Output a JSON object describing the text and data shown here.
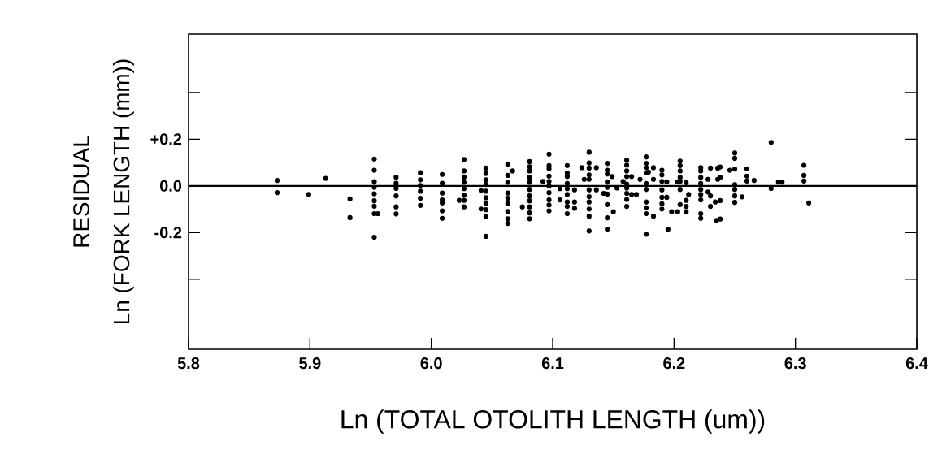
{
  "chart_data": {
    "type": "scatter",
    "xlabel": "Ln (TOTAL OTOLITH LENGTH (um))",
    "ylabel": "Ln (FORK LENGTH (mm))",
    "annotations": [
      "RESIDUAL"
    ],
    "xlim": [
      5.8,
      6.4
    ],
    "xticks": [
      {
        "value": 5.8,
        "label": "5.8"
      },
      {
        "value": 5.9,
        "label": "5.9"
      },
      {
        "value": 6.0,
        "label": "6.0"
      },
      {
        "value": 6.1,
        "label": "6.1"
      },
      {
        "value": 6.2,
        "label": "6.2"
      },
      {
        "value": 6.3,
        "label": "6.3"
      },
      {
        "value": 6.4,
        "label": "6.4"
      }
    ],
    "ylim": [
      -0.7,
      0.65
    ],
    "yticks": [
      {
        "value": -0.4,
        "label": null
      },
      {
        "value": -0.2,
        "label": "-0.2"
      },
      {
        "value": 0.0,
        "label": "0.0"
      },
      {
        "value": 0.2,
        "label": "+0.2"
      },
      {
        "value": 0.4,
        "label": null
      }
    ],
    "ref_lines": [
      {
        "axis": "y",
        "value": 0.0,
        "color": "#000000"
      }
    ],
    "series": [
      {
        "color": "#000000",
        "x": [
          5.873,
          5.873,
          5.899,
          5.913,
          5.933,
          5.933,
          5.953,
          5.953,
          5.953,
          5.953,
          5.953,
          5.953,
          5.953,
          5.953,
          5.956,
          5.953,
          5.971,
          5.971,
          5.971,
          5.971,
          5.971,
          5.971,
          5.971,
          5.991,
          5.991,
          5.991,
          5.991,
          5.991,
          5.991,
          6.009,
          6.009,
          6.009,
          6.009,
          6.009,
          6.009,
          6.009,
          6.023,
          6.027,
          6.027,
          6.027,
          6.027,
          6.027,
          6.027,
          6.027,
          6.027,
          6.045,
          6.045,
          6.045,
          6.045,
          6.045,
          6.045,
          6.045,
          6.045,
          6.045,
          6.045,
          6.041,
          6.041,
          6.063,
          6.063,
          6.063,
          6.063,
          6.063,
          6.063,
          6.063,
          6.063,
          6.063,
          6.067,
          6.075,
          6.081,
          6.081,
          6.081,
          6.081,
          6.081,
          6.081,
          6.081,
          6.081,
          6.081,
          6.081,
          6.081,
          6.097,
          6.097,
          6.097,
          6.097,
          6.097,
          6.097,
          6.097,
          6.097,
          6.097,
          6.097,
          6.092,
          6.106,
          6.106,
          6.112,
          6.112,
          6.112,
          6.112,
          6.112,
          6.112,
          6.112,
          6.112,
          6.112,
          6.118,
          6.118,
          6.118,
          6.13,
          6.13,
          6.13,
          6.13,
          6.13,
          6.13,
          6.13,
          6.13,
          6.13,
          6.13,
          6.13,
          6.124,
          6.126,
          6.136,
          6.136,
          6.145,
          6.145,
          6.145,
          6.145,
          6.145,
          6.145,
          6.145,
          6.145,
          6.145,
          6.149,
          6.15,
          6.142,
          6.161,
          6.161,
          6.161,
          6.161,
          6.161,
          6.161,
          6.161,
          6.161,
          6.161,
          6.158,
          6.165,
          6.165,
          6.169,
          6.153,
          6.177,
          6.177,
          6.177,
          6.177,
          6.177,
          6.177,
          6.177,
          6.177,
          6.177,
          6.177,
          6.179,
          6.183,
          6.183,
          6.183,
          6.172,
          6.19,
          6.19,
          6.19,
          6.19,
          6.19,
          6.19,
          6.19,
          6.194,
          6.194,
          6.195,
          6.198,
          6.203,
          6.203,
          6.205,
          6.205,
          6.205,
          6.205,
          6.205,
          6.205,
          6.205,
          6.21,
          6.21,
          6.21,
          6.21,
          6.212,
          6.222,
          6.222,
          6.222,
          6.222,
          6.222,
          6.222,
          6.222,
          6.222,
          6.222,
          6.228,
          6.228,
          6.23,
          6.23,
          6.23,
          6.234,
          6.236,
          6.236,
          6.235,
          6.246,
          6.238,
          6.238,
          6.238,
          6.238,
          6.25,
          6.25,
          6.25,
          6.25,
          6.25,
          6.25,
          6.25,
          6.256,
          6.26,
          6.26,
          6.26,
          6.266,
          6.28,
          6.28,
          6.286,
          6.289,
          6.307,
          6.307,
          6.307,
          6.311
        ],
        "values": [
          0.023,
          -0.029,
          -0.037,
          0.032,
          -0.056,
          -0.136,
          0.115,
          0.067,
          0.018,
          -0.006,
          -0.034,
          -0.064,
          -0.087,
          -0.119,
          -0.119,
          -0.22,
          0.037,
          0.011,
          0.0,
          -0.011,
          -0.043,
          -0.09,
          -0.12,
          0.056,
          0.026,
          0.002,
          -0.023,
          -0.053,
          -0.084,
          0.049,
          0.011,
          -0.031,
          -0.06,
          -0.073,
          -0.107,
          -0.139,
          -0.062,
          0.113,
          0.064,
          0.038,
          0.015,
          -0.012,
          -0.04,
          -0.062,
          -0.09,
          0.076,
          0.053,
          0.026,
          0.006,
          -0.023,
          -0.051,
          -0.076,
          -0.102,
          -0.132,
          -0.216,
          -0.02,
          -0.099,
          0.093,
          0.045,
          0.015,
          -0.031,
          -0.053,
          -0.076,
          -0.11,
          -0.141,
          -0.161,
          0.064,
          -0.09,
          0.104,
          0.082,
          0.064,
          0.036,
          0.015,
          -0.015,
          -0.043,
          -0.064,
          -0.09,
          -0.116,
          -0.141,
          0.136,
          0.087,
          0.073,
          0.042,
          0.019,
          -0.001,
          -0.029,
          -0.06,
          -0.082,
          -0.107,
          0.019,
          -0.012,
          -0.06,
          0.087,
          0.055,
          0.04,
          0.01,
          -0.012,
          -0.037,
          -0.069,
          -0.088,
          -0.119,
          -0.017,
          -0.069,
          -0.096,
          0.144,
          0.098,
          0.076,
          0.047,
          0.028,
          -0.017,
          -0.046,
          -0.069,
          -0.099,
          -0.13,
          -0.193,
          0.078,
          0.028,
          0.078,
          -0.017,
          0.096,
          0.067,
          0.051,
          0.017,
          -0.006,
          -0.035,
          -0.08,
          -0.137,
          -0.186,
          0.04,
          -0.111,
          -0.032,
          0.11,
          0.089,
          0.064,
          0.04,
          0.008,
          -0.009,
          -0.032,
          -0.058,
          -0.088,
          0.019,
          0.04,
          -0.037,
          -0.037,
          -0.009,
          0.124,
          0.096,
          0.078,
          0.055,
          0.01,
          -0.015,
          -0.069,
          -0.094,
          -0.119,
          -0.207,
          0.059,
          0.078,
          0.028,
          -0.13,
          0.028,
          0.067,
          0.047,
          0.019,
          -0.017,
          -0.049,
          -0.077,
          -0.099,
          0.017,
          -0.049,
          -0.186,
          -0.111,
          -0.111,
          0.017,
          0.106,
          0.087,
          0.064,
          0.036,
          0.019,
          -0.015,
          -0.08,
          0.014,
          -0.062,
          -0.088,
          -0.111,
          -0.037,
          0.078,
          0.064,
          0.036,
          0.01,
          -0.015,
          -0.037,
          -0.06,
          -0.119,
          -0.139,
          0.028,
          -0.026,
          0.076,
          -0.043,
          -0.088,
          -0.069,
          0.076,
          0.028,
          -0.148,
          0.067,
          0.081,
          0.036,
          -0.063,
          -0.142,
          0.141,
          0.118,
          0.072,
          0.005,
          -0.015,
          -0.043,
          -0.071,
          -0.047,
          0.073,
          0.042,
          0.021,
          0.023,
          0.186,
          -0.011,
          0.016,
          0.016,
          0.088,
          0.045,
          0.021,
          -0.073
        ]
      }
    ]
  }
}
